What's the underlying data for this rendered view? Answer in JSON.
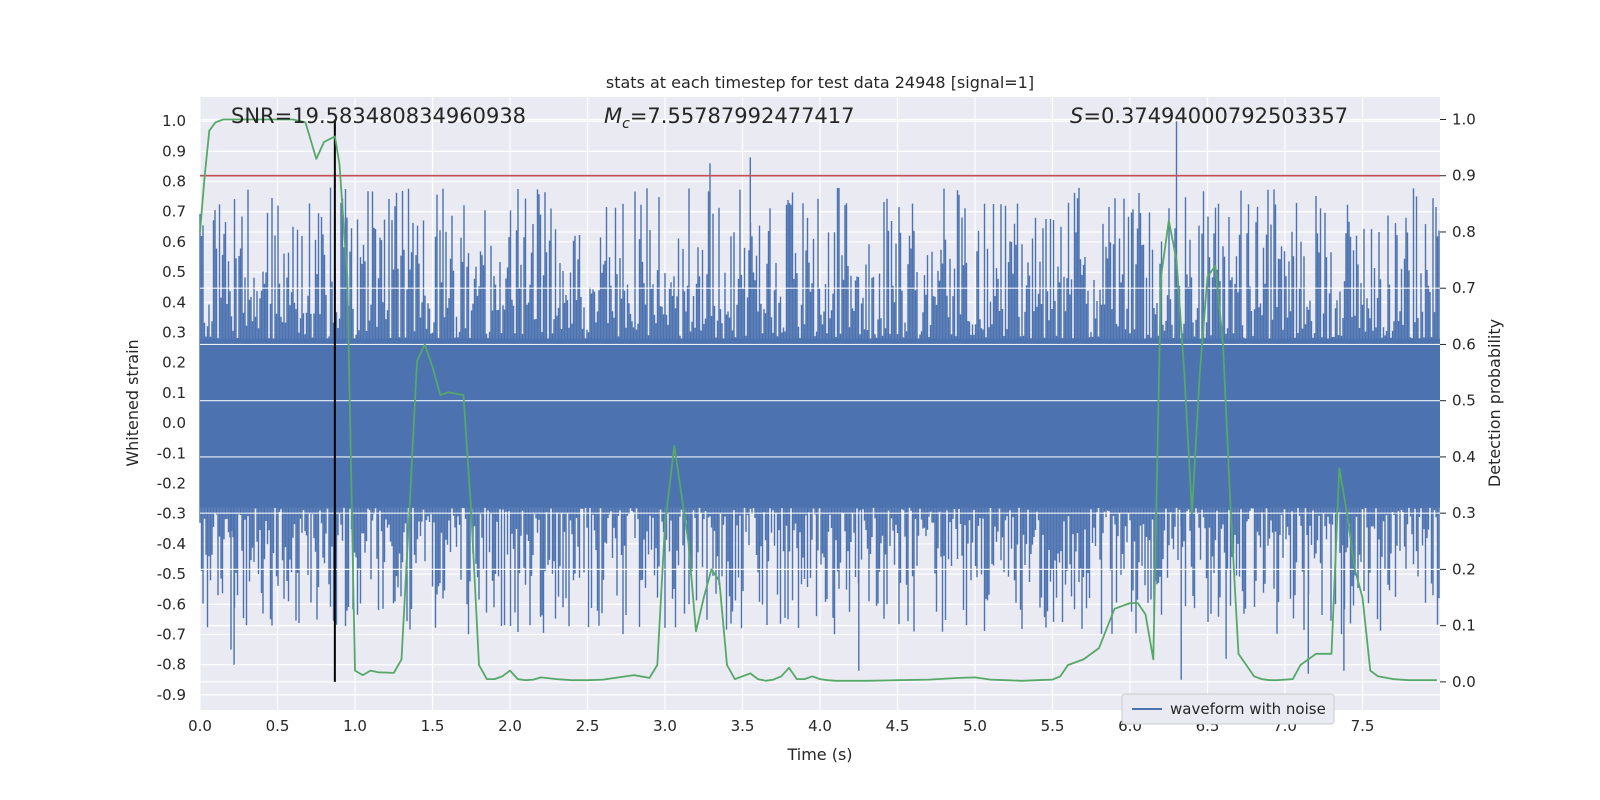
{
  "chart_data": {
    "type": "line",
    "title": "stats at each timestep for test data 24948 [signal=1]",
    "xlabel": "Time (s)",
    "ylabel_left": "Whitened strain",
    "ylabel_right": "Detection probability",
    "xlim": [
      0,
      8
    ],
    "ylim_left": [
      -0.95,
      1.08
    ],
    "ylim_right": [
      -0.05,
      1.04
    ],
    "x_ticks": [
      "0.0",
      "0.5",
      "1.0",
      "1.5",
      "2.0",
      "2.5",
      "3.0",
      "3.5",
      "4.0",
      "4.5",
      "5.0",
      "5.5",
      "6.0",
      "6.5",
      "7.0",
      "7.5"
    ],
    "y_left_ticks": [
      "1.0",
      "0.9",
      "0.8",
      "0.7",
      "0.6",
      "0.5",
      "0.4",
      "0.3",
      "0.2",
      "0.1",
      "0.0",
      "-0.1",
      "-0.2",
      "-0.3",
      "-0.4",
      "-0.5",
      "-0.6",
      "-0.7",
      "-0.8",
      "-0.9"
    ],
    "y_right_ticks": [
      "1.0",
      "0.9",
      "0.8",
      "0.7",
      "0.6",
      "0.5",
      "0.4",
      "0.3",
      "0.2",
      "0.1",
      "0.0"
    ],
    "annotations": {
      "snr": "SNR=19.583480834960938",
      "mc_symbol": "M",
      "mc_sub": "c",
      "mc_value": "=7.55787992477417",
      "s_symbol": "S",
      "s_value": "=0.37494000792503357"
    },
    "threshold_probability": 0.9,
    "marker_time": 0.87,
    "legend": {
      "location": "lower right",
      "entries": [
        {
          "label": "waveform with noise",
          "color": "#4c72b0"
        }
      ]
    },
    "waveform": {
      "name": "waveform with noise",
      "color": "#4c72b0",
      "core_range": [
        -0.28,
        0.28
      ],
      "note_envelope": "dense noise, amplitude roughly -0.6..0.8"
    },
    "detection_probability": {
      "color": "#55a868",
      "x": [
        0.0,
        0.03,
        0.06,
        0.1,
        0.15,
        0.2,
        0.3,
        0.4,
        0.5,
        0.6,
        0.68,
        0.75,
        0.8,
        0.87,
        0.9,
        0.95,
        1.0,
        1.05,
        1.1,
        1.15,
        1.25,
        1.3,
        1.35,
        1.4,
        1.45,
        1.5,
        1.55,
        1.6,
        1.7,
        1.75,
        1.8,
        1.85,
        1.9,
        1.95,
        2.0,
        2.05,
        2.1,
        2.15,
        2.2,
        2.3,
        2.4,
        2.5,
        2.6,
        2.7,
        2.8,
        2.9,
        2.95,
        3.0,
        3.06,
        3.15,
        3.2,
        3.25,
        3.3,
        3.35,
        3.4,
        3.45,
        3.5,
        3.55,
        3.6,
        3.65,
        3.7,
        3.75,
        3.8,
        3.85,
        3.9,
        3.95,
        4.0,
        4.05,
        4.1,
        4.2,
        4.3,
        4.5,
        4.7,
        4.9,
        5.0,
        5.1,
        5.2,
        5.3,
        5.4,
        5.5,
        5.55,
        5.6,
        5.7,
        5.8,
        5.9,
        6.0,
        6.05,
        6.1,
        6.15,
        6.2,
        6.25,
        6.3,
        6.35,
        6.4,
        6.45,
        6.5,
        6.55,
        6.6,
        6.65,
        6.7,
        6.75,
        6.8,
        6.85,
        6.9,
        6.95,
        7.0,
        7.05,
        7.1,
        7.15,
        7.2,
        7.3,
        7.35,
        7.4,
        7.45,
        7.5,
        7.55,
        7.6,
        7.7,
        7.8,
        7.9,
        7.98
      ],
      "y": [
        0.8,
        0.9,
        0.98,
        0.995,
        1.0,
        1.0,
        1.0,
        1.0,
        1.0,
        1.0,
        0.995,
        0.93,
        0.96,
        0.97,
        0.92,
        0.72,
        0.02,
        0.012,
        0.02,
        0.017,
        0.016,
        0.04,
        0.3,
        0.57,
        0.6,
        0.56,
        0.51,
        0.515,
        0.51,
        0.3,
        0.03,
        0.005,
        0.005,
        0.01,
        0.02,
        0.005,
        0.003,
        0.004,
        0.008,
        0.005,
        0.003,
        0.003,
        0.004,
        0.008,
        0.012,
        0.007,
        0.03,
        0.28,
        0.42,
        0.25,
        0.09,
        0.15,
        0.2,
        0.18,
        0.03,
        0.005,
        0.01,
        0.015,
        0.005,
        0.002,
        0.004,
        0.01,
        0.025,
        0.005,
        0.005,
        0.01,
        0.005,
        0.003,
        0.002,
        0.002,
        0.002,
        0.003,
        0.004,
        0.007,
        0.008,
        0.004,
        0.003,
        0.002,
        0.003,
        0.004,
        0.01,
        0.03,
        0.04,
        0.06,
        0.13,
        0.14,
        0.14,
        0.12,
        0.04,
        0.72,
        0.82,
        0.75,
        0.55,
        0.3,
        0.55,
        0.72,
        0.74,
        0.6,
        0.3,
        0.05,
        0.03,
        0.01,
        0.005,
        0.003,
        0.003,
        0.004,
        0.005,
        0.03,
        0.04,
        0.05,
        0.05,
        0.38,
        0.3,
        0.2,
        0.15,
        0.02,
        0.01,
        0.005,
        0.003,
        0.003,
        0.003
      ]
    }
  }
}
